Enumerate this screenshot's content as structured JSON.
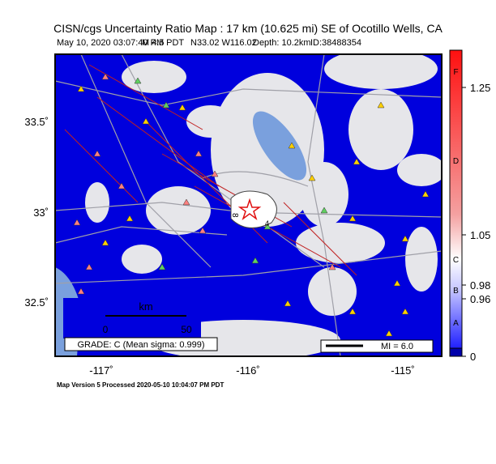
{
  "header": {
    "title": "CISN/cgs Uncertainty Ratio Map : 17 km (10.625 mi) SE of Ocotillo Wells, CA",
    "info": [
      "May 10, 2020 03:07:40 PM PDT",
      "M 4.5",
      "N33.02 W116.02",
      "Depth: 10.2km",
      "ID:38488354"
    ]
  },
  "map": {
    "lat_labels": [
      "33.5˚",
      "33˚",
      "32.5˚"
    ],
    "lon_labels": [
      "-117˚",
      "-116˚",
      "-115˚"
    ],
    "scale_bar": {
      "unit": "km",
      "start": "0",
      "end": "50"
    },
    "grade": "GRADE: C (Mean sigma: 0.999)",
    "mi_legend": "MI = 6.0",
    "contour_labels": [
      "8",
      "4"
    ]
  },
  "colorbar": {
    "letters": [
      "F",
      "D",
      "C",
      "B",
      "A"
    ],
    "ticks": [
      "1.25",
      "1.05",
      "0.98",
      "0.96",
      "0"
    ]
  },
  "footer": "Map Version 5 Processed 2020-05-10 10:04:07 PM PDT"
}
